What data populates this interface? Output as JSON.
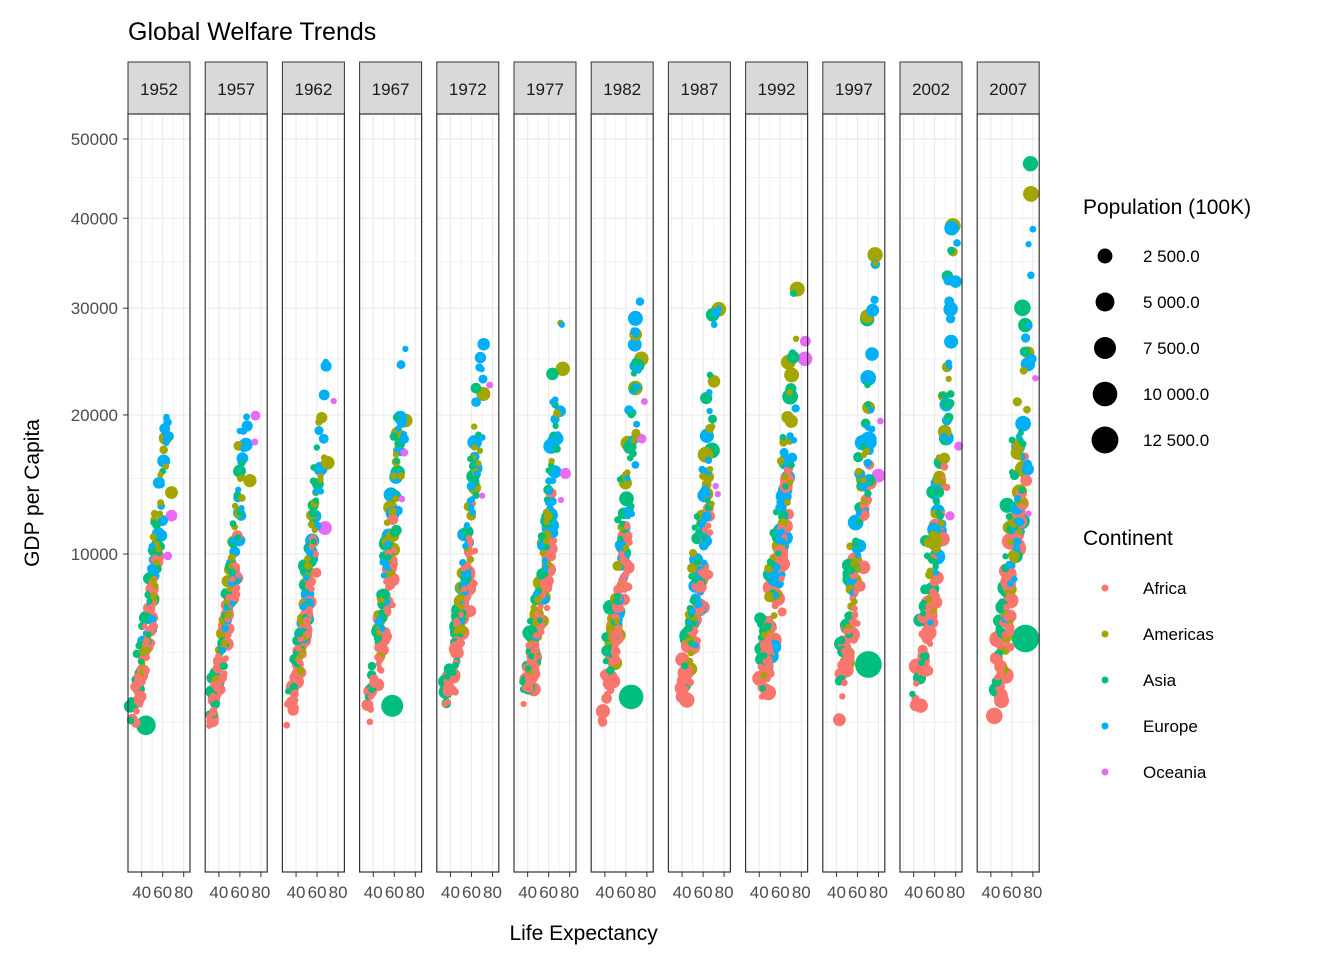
{
  "chart_data": {
    "type": "scatter",
    "title": "Global Welfare Trends",
    "xlabel": "Life Expectancy",
    "ylabel": "GDP per Capita",
    "facet_years": [
      "1952",
      "1957",
      "1962",
      "1967",
      "1972",
      "1977",
      "1982",
      "1987",
      "1992",
      "1997",
      "2002",
      "2007"
    ],
    "x_ticks": [
      "40",
      "60",
      "80"
    ],
    "y_ticks": [
      "10000",
      "20000",
      "30000",
      "40000",
      "50000"
    ],
    "ylim": [
      2000,
      58000
    ],
    "xlim": [
      27,
      86
    ],
    "grid": true,
    "legend_size": {
      "title": "Population (100K)",
      "entries": [
        {
          "label": "2 500.0",
          "value": 2500
        },
        {
          "label": "5 000.0",
          "value": 5000
        },
        {
          "label": "7 500.0",
          "value": 7500
        },
        {
          "label": "10 000.0",
          "value": 10000
        },
        {
          "label": "12 500.0",
          "value": 12500
        }
      ]
    },
    "legend_color": {
      "title": "Continent",
      "entries": [
        {
          "label": "Africa",
          "color": "#F8766D"
        },
        {
          "label": "Americas",
          "color": "#A3A500"
        },
        {
          "label": "Asia",
          "color": "#00BF7D"
        },
        {
          "label": "Europe",
          "color": "#00B0F6"
        },
        {
          "label": "Oceania",
          "color": "#E76BF3"
        }
      ]
    },
    "series": [
      {
        "continent": "Africa",
        "color": "#F8766D",
        "n": 52,
        "life_range": [
          30,
          76
        ],
        "gdp_range": [
          2000,
          22000
        ]
      },
      {
        "continent": "Americas",
        "color": "#A3A500",
        "n": 25,
        "life_range": [
          37,
          81
        ],
        "gdp_range": [
          3000,
          43000
        ]
      },
      {
        "continent": "Asia",
        "color": "#00BF7D",
        "n": 33,
        "life_range": [
          28,
          83
        ],
        "gdp_range": [
          2000,
          47000
        ]
      },
      {
        "continent": "Europe",
        "color": "#00B0F6",
        "n": 30,
        "life_range": [
          43,
          82
        ],
        "gdp_range": [
          4000,
          49000
        ]
      },
      {
        "continent": "Oceania",
        "color": "#E76BF3",
        "n": 2,
        "life_range": [
          69,
          82
        ],
        "gdp_range": [
          10000,
          35000
        ]
      }
    ],
    "highlights": [
      {
        "year": "1952",
        "continent": "Americas",
        "life": 68.4,
        "gdp": 13990,
        "pop": 1577
      },
      {
        "year": "1957",
        "continent": "Americas",
        "life": 69.5,
        "gdp": 14847,
        "pop": 1718
      },
      {
        "year": "1962",
        "continent": "Americas",
        "life": 70.2,
        "gdp": 16173,
        "pop": 1867
      },
      {
        "year": "1967",
        "continent": "Americas",
        "life": 70.8,
        "gdp": 19530,
        "pop": 1987
      },
      {
        "year": "1972",
        "continent": "Americas",
        "life": 71.3,
        "gdp": 21806,
        "pop": 2098
      },
      {
        "year": "1977",
        "continent": "Americas",
        "life": 73.4,
        "gdp": 24073,
        "pop": 2202
      },
      {
        "year": "1982",
        "continent": "Americas",
        "life": 74.7,
        "gdp": 25010,
        "pop": 2322
      },
      {
        "year": "1987",
        "continent": "Americas",
        "life": 75.0,
        "gdp": 29884,
        "pop": 2426
      },
      {
        "year": "1992",
        "continent": "Americas",
        "life": 76.1,
        "gdp": 32004,
        "pop": 2566
      },
      {
        "year": "1997",
        "continent": "Americas",
        "life": 76.8,
        "gdp": 35767,
        "pop": 2722
      },
      {
        "year": "2002",
        "continent": "Americas",
        "life": 77.3,
        "gdp": 39097,
        "pop": 2876
      },
      {
        "year": "2007",
        "continent": "Americas",
        "life": 78.2,
        "gdp": 42952,
        "pop": 3012
      },
      {
        "year": "1952",
        "continent": "Asia",
        "life": 44.0,
        "gdp": 2400,
        "pop": 5563
      },
      {
        "year": "1967",
        "continent": "Asia",
        "life": 58.0,
        "gdp": 3000,
        "pop": 7545
      },
      {
        "year": "1982",
        "continent": "Asia",
        "life": 65.0,
        "gdp": 3300,
        "pop": 10004
      },
      {
        "year": "1997",
        "continent": "Asia",
        "life": 70.4,
        "gdp": 4500,
        "pop": 12300
      },
      {
        "year": "2007",
        "continent": "Asia",
        "life": 73.0,
        "gdp": 5600,
        "pop": 13186
      }
    ]
  }
}
